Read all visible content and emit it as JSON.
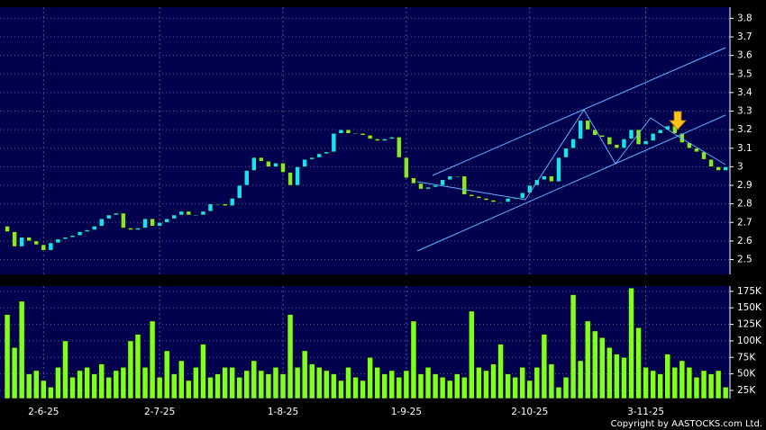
{
  "chart_data": [
    {
      "type": "candlestick",
      "up_color": "#19e0f5",
      "down_color": "#8ae62a",
      "xlim": [
        -1,
        99.6
      ],
      "xticks": [
        {
          "value": 5,
          "label": "2-6-25"
        },
        {
          "value": 21,
          "label": "2-7-25"
        },
        {
          "value": 38,
          "label": "1-8-25"
        },
        {
          "value": 55,
          "label": "1-9-25"
        },
        {
          "value": 72,
          "label": "2-10-25"
        },
        {
          "value": 88,
          "label": "3-11-25"
        }
      ],
      "ylim": [
        2.42,
        3.86
      ],
      "yticks": [
        2.5,
        2.6,
        2.7,
        2.8,
        2.9,
        3,
        3.1,
        3.2,
        3.3,
        3.4,
        3.5,
        3.6,
        3.7,
        3.8
      ],
      "grid": true,
      "series": [
        {
          "open": [
            2.68,
            2.65,
            2.57,
            2.62,
            2.6,
            2.58,
            2.55,
            2.59,
            2.61,
            2.62,
            2.63,
            2.65,
            2.66,
            2.68,
            2.72,
            2.74,
            2.75,
            2.67,
            2.66,
            2.67,
            2.72,
            2.68,
            2.7,
            2.72,
            2.74,
            2.76,
            2.74,
            2.74,
            2.76,
            2.8,
            2.8,
            2.79,
            2.83,
            2.9,
            2.98,
            3.05,
            3.03,
            3.0,
            3.02,
            2.97,
            2.9,
            3.0,
            3.04,
            3.05,
            3.07,
            3.08,
            3.18,
            3.2,
            3.18,
            3.18,
            3.17,
            3.15,
            3.14,
            3.15,
            3.16,
            3.05,
            2.94,
            2.91,
            2.88,
            2.89,
            2.9,
            2.93,
            2.95,
            2.95,
            2.85,
            2.84,
            2.83,
            2.82,
            2.81,
            2.81,
            2.83,
            2.83,
            2.86,
            2.9,
            2.93,
            2.95,
            2.92,
            3.05,
            3.1,
            3.15,
            3.25,
            3.2,
            3.17,
            3.16,
            3.12,
            3.1,
            3.15,
            3.2,
            3.12,
            3.14,
            3.18,
            3.2,
            3.22,
            3.18,
            3.13,
            3.1,
            3.08,
            3.04,
            3.0,
            2.98
          ],
          "close": [
            2.65,
            2.57,
            2.62,
            2.6,
            2.58,
            2.55,
            2.59,
            2.61,
            2.62,
            2.63,
            2.65,
            2.66,
            2.68,
            2.72,
            2.74,
            2.75,
            2.67,
            2.66,
            2.67,
            2.72,
            2.68,
            2.7,
            2.72,
            2.74,
            2.76,
            2.74,
            2.74,
            2.76,
            2.8,
            2.8,
            2.79,
            2.83,
            2.9,
            2.98,
            3.05,
            3.03,
            3.0,
            3.02,
            2.97,
            2.9,
            3.0,
            3.04,
            3.05,
            3.07,
            3.08,
            3.18,
            3.2,
            3.18,
            3.18,
            3.17,
            3.15,
            3.14,
            3.15,
            3.16,
            3.05,
            2.94,
            2.91,
            2.88,
            2.89,
            2.9,
            2.93,
            2.95,
            2.95,
            2.85,
            2.84,
            2.83,
            2.82,
            2.81,
            2.81,
            2.83,
            2.83,
            2.86,
            2.9,
            2.93,
            2.95,
            2.92,
            3.05,
            3.1,
            3.15,
            3.25,
            3.2,
            3.17,
            3.16,
            3.12,
            3.1,
            3.15,
            3.2,
            3.12,
            3.14,
            3.18,
            3.2,
            3.22,
            3.18,
            3.13,
            3.1,
            3.08,
            3.04,
            3.0,
            2.98,
            3.0
          ]
        }
      ]
    },
    {
      "type": "bar",
      "color": "#7fff1e",
      "ylim": [
        12700,
        183000
      ],
      "yticks": [
        {
          "value": 25000,
          "label": "25K"
        },
        {
          "value": 50000,
          "label": "50K"
        },
        {
          "value": 75000,
          "label": "75K"
        },
        {
          "value": 100000,
          "label": "100K"
        },
        {
          "value": 125000,
          "label": "125K"
        },
        {
          "value": 150000,
          "label": "150K"
        },
        {
          "value": 175000,
          "label": "175K"
        }
      ],
      "values": [
        140000,
        90000,
        160000,
        50000,
        55000,
        40000,
        30000,
        60000,
        100000,
        45000,
        55000,
        60000,
        50000,
        65000,
        45000,
        55000,
        60000,
        100000,
        110000,
        60000,
        130000,
        45000,
        85000,
        50000,
        70000,
        40000,
        60000,
        95000,
        45000,
        50000,
        60000,
        60000,
        45000,
        55000,
        70000,
        55000,
        50000,
        60000,
        50000,
        140000,
        60000,
        85000,
        65000,
        60000,
        55000,
        50000,
        40000,
        60000,
        45000,
        40000,
        75000,
        60000,
        50000,
        55000,
        45000,
        55000,
        130000,
        50000,
        60000,
        50000,
        45000,
        40000,
        50000,
        45000,
        145000,
        60000,
        55000,
        65000,
        95000,
        50000,
        45000,
        60000,
        40000,
        60000,
        110000,
        65000,
        30000,
        45000,
        170000,
        70000,
        130000,
        115000,
        105000,
        90000,
        80000,
        75000,
        180000,
        120000,
        60000,
        55000,
        50000,
        80000,
        60000,
        70000,
        60000,
        45000,
        55000,
        50000,
        55000,
        30000
      ]
    }
  ],
  "footer": "Copyright by AASTOCKS.com Ltd."
}
